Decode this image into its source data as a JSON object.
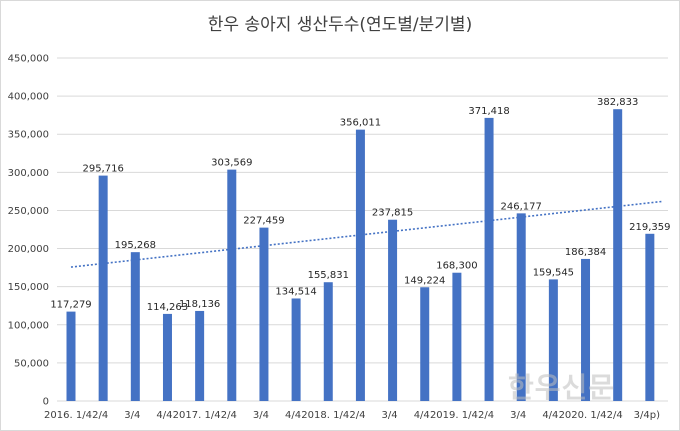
{
  "chart_data": {
    "type": "bar",
    "title": "한우 송아지 생산두수(연도별/분기별)",
    "categories": [
      "2016. 1/4",
      "2/4",
      "3/4",
      "4/4",
      "2017. 1/4",
      "2/4",
      "3/4",
      "4/4",
      "2018. 1/4",
      "2/4",
      "3/4",
      "4/4",
      "2019. 1/4",
      "2/4",
      "3/4",
      "4/4",
      "2020. 1/4",
      "2/4",
      "3/4p)"
    ],
    "values": [
      117279,
      295716,
      195268,
      114263,
      118136,
      303569,
      227459,
      134514,
      155831,
      356011,
      237815,
      149224,
      168300,
      371418,
      246177,
      159545,
      186384,
      382833,
      219359
    ],
    "value_labels": [
      "117,279",
      "295,716",
      "195,268",
      "114,263",
      "118,136",
      "303,569",
      "227,459",
      "134,514",
      "155,831",
      "356,011",
      "237,815",
      "149,224",
      "168,300",
      "371,418",
      "246,177",
      "159,545",
      "186,384",
      "382,833",
      "219,359"
    ],
    "y_ticks": [
      "0",
      "50,000",
      "100,000",
      "150,000",
      "200,000",
      "250,000",
      "300,000",
      "350,000",
      "400,000",
      "450,000"
    ],
    "ylim": [
      0,
      450000
    ],
    "xlabel": "",
    "ylabel": "",
    "grid": true,
    "trendline": {
      "style": "dotted",
      "type": "linear"
    },
    "colors": {
      "bar": "#4472c4",
      "trend": "#4472c4",
      "grid": "#d9d9d9"
    }
  },
  "watermark": "한우신문"
}
